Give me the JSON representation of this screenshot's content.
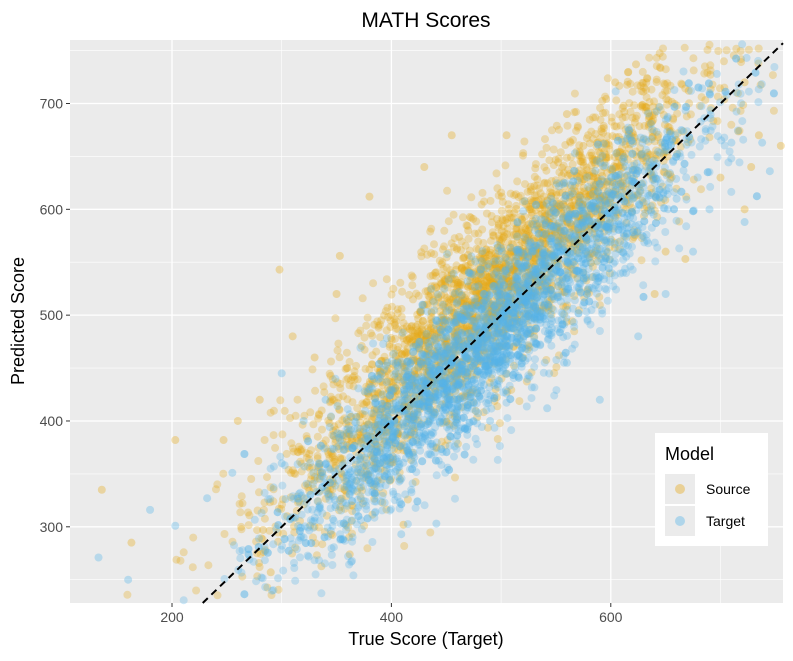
{
  "chart_data": {
    "type": "scatter",
    "title": "MATH Scores",
    "xlabel": "True Score (Target)",
    "ylabel": "Predicted Score",
    "xlim": [
      107,
      757
    ],
    "ylim": [
      228,
      760
    ],
    "x_ticks": [
      200,
      400,
      600
    ],
    "y_ticks": [
      300,
      400,
      500,
      600,
      700
    ],
    "grid": true,
    "reference_line": {
      "style": "dashed",
      "color": "#000000",
      "intercept": 0,
      "slope": 1
    },
    "legend": {
      "title": "Model",
      "position": "right",
      "entries": [
        {
          "label": "Source",
          "color": "#E6A817"
        },
        {
          "label": "Target",
          "color": "#56B4E9"
        }
      ]
    },
    "series": [
      {
        "name": "Source",
        "color": "#E6A817",
        "point_count": 3000,
        "points": [
          [
            136,
            335
          ],
          [
            163,
            285
          ],
          [
            203,
            382
          ],
          [
            247,
            382
          ],
          [
            298,
            543
          ],
          [
            353,
            556
          ],
          [
            362,
            274
          ],
          [
            455,
            670
          ],
          [
            505,
            670
          ],
          [
            604,
            720
          ],
          [
            623,
            737
          ],
          [
            671,
            712
          ],
          [
            722,
            720
          ],
          [
            722,
            600
          ],
          [
            755,
            660
          ],
          [
            283,
            297
          ],
          [
            290,
            257
          ],
          [
            305,
            310
          ],
          [
            411,
            302
          ],
          [
            380,
            612
          ],
          [
            430,
            640
          ],
          [
            560,
            690
          ],
          [
            575,
            660
          ],
          [
            610,
            645
          ],
          [
            650,
            560
          ],
          [
            668,
            553
          ],
          [
            640,
            520
          ],
          [
            700,
            630
          ],
          [
            735,
            670
          ],
          [
            728,
            640
          ],
          [
            495,
            430
          ],
          [
            520,
            460
          ],
          [
            470,
            580
          ],
          [
            440,
            540
          ],
          [
            400,
            500
          ],
          [
            330,
            460
          ],
          [
            310,
            480
          ],
          [
            350,
            520
          ],
          [
            280,
            420
          ],
          [
            260,
            400
          ]
        ]
      },
      {
        "name": "Target",
        "color": "#56B4E9",
        "point_count": 3000,
        "points": [
          [
            133,
            271
          ],
          [
            160,
            250
          ],
          [
            180,
            316
          ],
          [
            203,
            301
          ],
          [
            232,
            327
          ],
          [
            255,
            351
          ],
          [
            300,
            445
          ],
          [
            364,
            306
          ],
          [
            409,
            293
          ],
          [
            441,
            303
          ],
          [
            490,
            400
          ],
          [
            542,
            412
          ],
          [
            560,
            455
          ],
          [
            590,
            420
          ],
          [
            625,
            480
          ],
          [
            650,
            520
          ],
          [
            675,
            560
          ],
          [
            710,
            663
          ],
          [
            738,
            663
          ],
          [
            745,
            636
          ],
          [
            722,
            588
          ],
          [
            690,
            600
          ],
          [
            660,
            610
          ],
          [
            300,
            360
          ],
          [
            320,
            400
          ],
          [
            340,
            420
          ],
          [
            380,
            430
          ],
          [
            420,
            470
          ],
          [
            460,
            500
          ],
          [
            500,
            530
          ],
          [
            540,
            560
          ],
          [
            580,
            590
          ],
          [
            620,
            610
          ]
        ]
      }
    ]
  }
}
